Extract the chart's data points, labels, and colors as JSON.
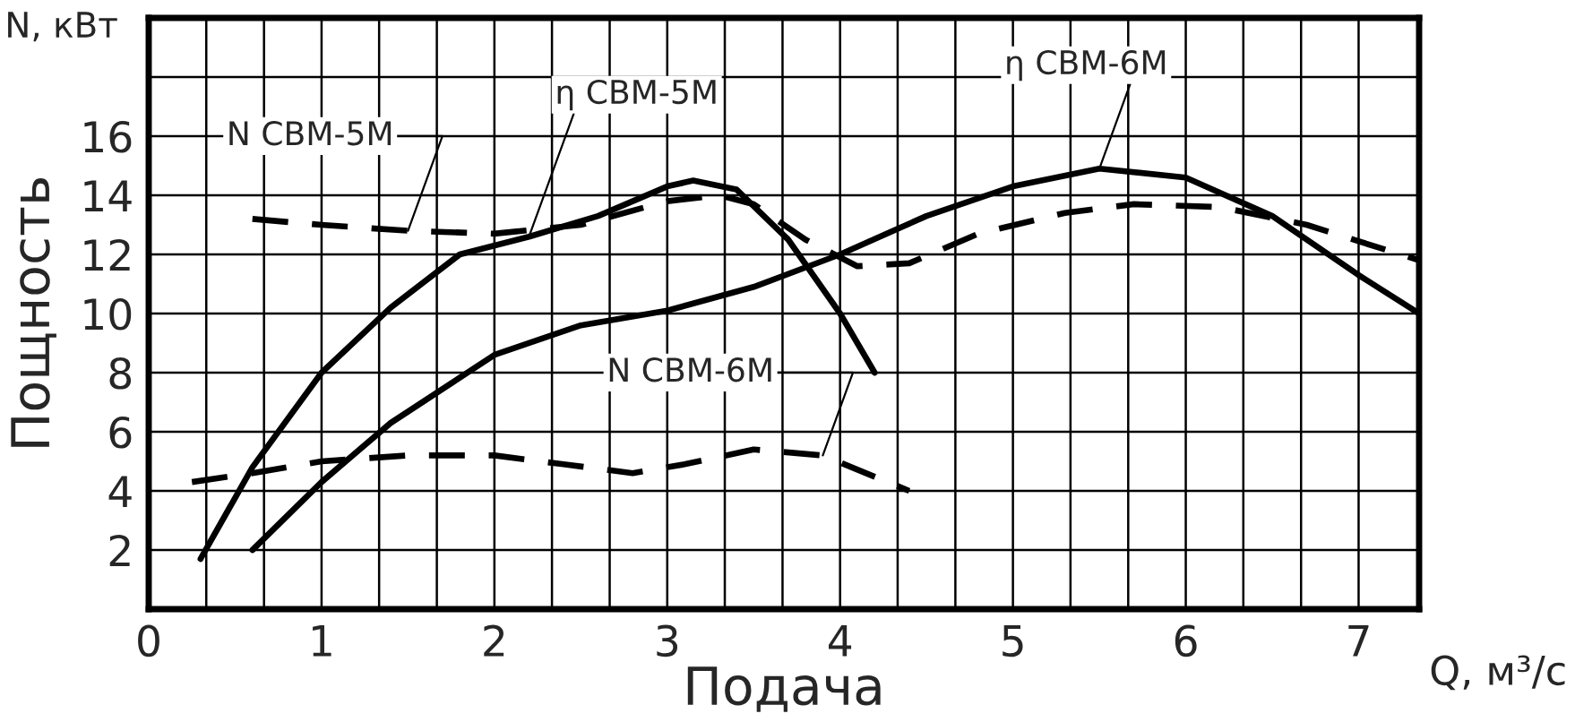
{
  "chart_data": {
    "type": "line",
    "xlabel": "Подача",
    "ylabel": "Пощность",
    "annotations": [
      "N, кВт",
      "Q, м³/с"
    ],
    "xlim": [
      0,
      7.35
    ],
    "ylim": [
      0,
      20
    ],
    "xticks": [
      0,
      {
        "value": 0.333,
        "label": null
      },
      {
        "value": 0.667,
        "label": null
      },
      1,
      {
        "value": 1.333,
        "label": null
      },
      {
        "value": 1.667,
        "label": null
      },
      2,
      {
        "value": 2.333,
        "label": null
      },
      {
        "value": 2.667,
        "label": null
      },
      3,
      {
        "value": 3.333,
        "label": null
      },
      {
        "value": 3.667,
        "label": null
      },
      4,
      {
        "value": 4.333,
        "label": null
      },
      {
        "value": 4.667,
        "label": null
      },
      5,
      {
        "value": 5.333,
        "label": null
      },
      {
        "value": 5.667,
        "label": null
      },
      6,
      {
        "value": 6.333,
        "label": null
      },
      {
        "value": 6.667,
        "label": null
      },
      7
    ],
    "yticks": [
      2,
      4,
      6,
      8,
      10,
      12,
      14,
      16,
      {
        "value": 18,
        "label": null
      }
    ],
    "grid": true,
    "legend": false,
    "series": [
      {
        "name": "N СВМ-5М",
        "color": "#000000",
        "line_style": "dashed",
        "x": [
          0.6,
          1,
          1.5,
          2,
          2.5,
          3,
          3.3,
          3.5,
          3.8,
          4.1,
          4.4,
          4.8,
          5.3,
          5.7,
          6.2,
          6.7,
          7.35
        ],
        "values": [
          13.2,
          13.0,
          12.8,
          12.7,
          13.0,
          13.8,
          14.0,
          13.7,
          12.5,
          11.6,
          11.7,
          12.7,
          13.4,
          13.7,
          13.6,
          13.0,
          11.8
        ]
      },
      {
        "name": "η СВМ-5М",
        "color": "#000000",
        "line_style": "solid",
        "x": [
          0.3,
          0.6,
          1,
          1.4,
          1.8,
          2.2,
          2.6,
          3,
          3.15,
          3.4,
          3.7,
          4,
          4.2
        ],
        "values": [
          1.7,
          4.8,
          8,
          10.2,
          12,
          12.6,
          13.3,
          14.3,
          14.5,
          14.2,
          12.5,
          10,
          8
        ]
      },
      {
        "name": "η СВМ-6М",
        "color": "#000000",
        "line_style": "solid",
        "x": [
          0.6,
          1,
          1.4,
          2,
          2.5,
          3,
          3.5,
          4,
          4.5,
          5,
          5.5,
          6,
          6.5,
          7,
          7.35
        ],
        "values": [
          2,
          4.3,
          6.3,
          8.6,
          9.6,
          10.1,
          10.9,
          12,
          13.3,
          14.3,
          14.9,
          14.6,
          13.3,
          11.3,
          10
        ]
      },
      {
        "name": "N СВМ-6М",
        "color": "#000000",
        "line_style": "dashed",
        "x": [
          0.25,
          0.6,
          1,
          1.5,
          2,
          2.4,
          2.8,
          3.1,
          3.5,
          3.9,
          4.4
        ],
        "values": [
          4.3,
          4.6,
          5,
          5.2,
          5.2,
          4.9,
          4.6,
          4.9,
          5.4,
          5.2,
          4
        ]
      }
    ]
  }
}
